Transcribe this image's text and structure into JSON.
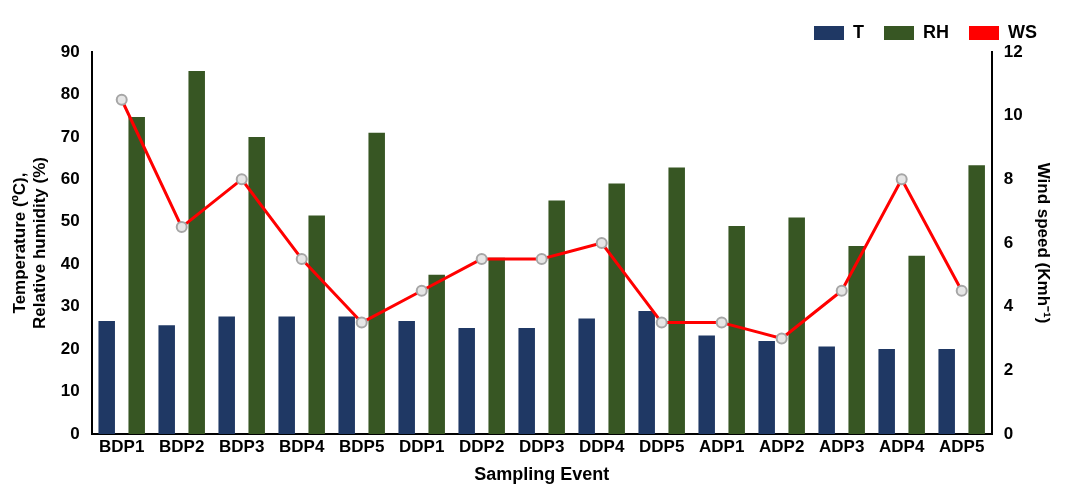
{
  "chart_data": {
    "type": "bar",
    "xlabel": "Sampling Event",
    "ylabel": "Temperature (ºC),\nRelative humidity (%)",
    "y2label": "Wind speed (Kmh⁻¹)",
    "categories": [
      "BDP1",
      "BDP2",
      "BDP3",
      "BDP4",
      "BDP5",
      "DDP1",
      "DDP2",
      "DDP3",
      "DDP4",
      "DDP5",
      "ADP1",
      "ADP2",
      "ADP3",
      "ADP4",
      "ADP5"
    ],
    "series": [
      {
        "name": "T",
        "color": "#1f3864",
        "values": [
          26.6,
          25.6,
          27.7,
          27.7,
          27.7,
          26.6,
          25,
          25,
          27.2,
          29,
          23.2,
          21.9,
          20.6,
          20,
          20
        ]
      },
      {
        "name": "RH",
        "color": "#375623",
        "values": [
          74.7,
          85.5,
          70,
          51.5,
          71,
          37.5,
          41.5,
          55,
          59,
          62.8,
          49,
          51,
          44.3,
          42,
          63.3
        ]
      },
      {
        "name": "WS",
        "type": "line",
        "axis": "y2",
        "color": "#ff0000",
        "values": [
          10.5,
          6.5,
          8,
          5.5,
          3.5,
          4.5,
          5.5,
          5.5,
          6,
          3.5,
          3.5,
          3,
          4.5,
          8,
          4.5
        ]
      }
    ],
    "ylim": [
      0,
      90
    ],
    "yticks": [
      0,
      10,
      20,
      30,
      40,
      50,
      60,
      70,
      80,
      90
    ],
    "y2lim": [
      0,
      12
    ],
    "y2ticks": [
      0,
      2,
      4,
      6,
      8,
      10,
      12
    ],
    "marker": "circle",
    "line_style": "solid",
    "grid": false,
    "legend": "top right"
  }
}
